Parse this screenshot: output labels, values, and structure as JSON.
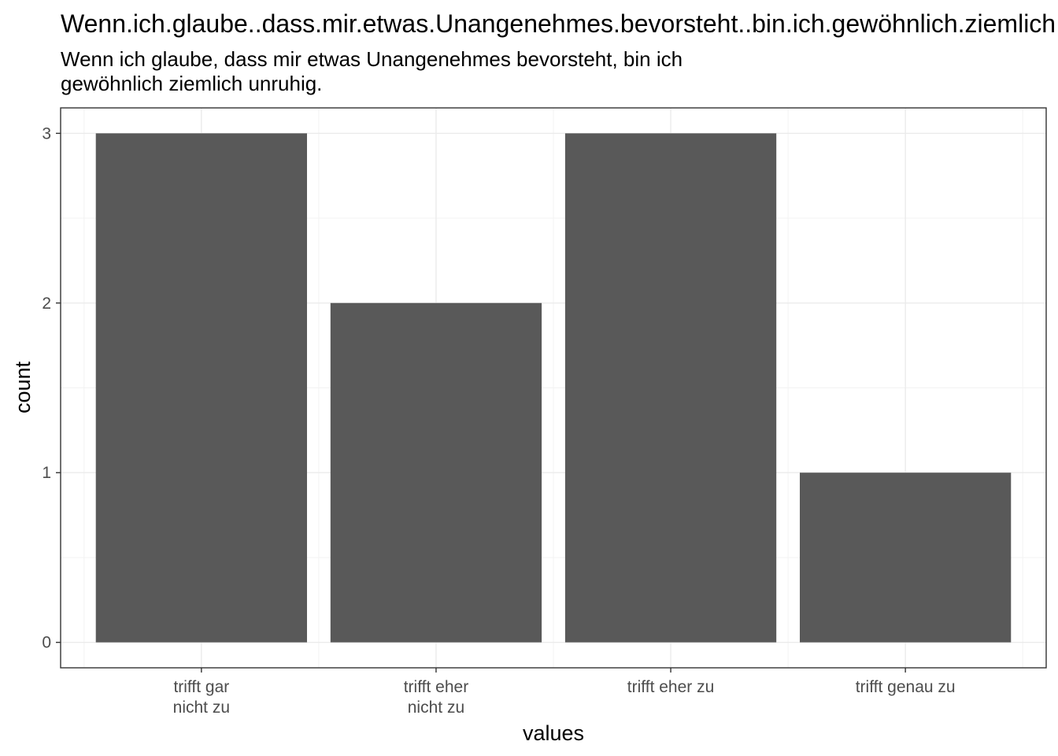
{
  "chart_data": {
    "type": "bar",
    "title": "Wenn.ich.glaube..dass.mir.etwas.Unangenehmes.bevorsteht..bin.ich.gewöhnlich.ziemlich.unruhig.",
    "subtitle_lines": [
      "Wenn ich glaube, dass mir etwas Unangenehmes bevorsteht, bin ich",
      "gewöhnlich ziemlich unruhig."
    ],
    "xlabel": "values",
    "ylabel": "count",
    "categories": [
      {
        "lines": [
          "trifft gar",
          "nicht zu"
        ]
      },
      {
        "lines": [
          "trifft eher",
          "nicht zu"
        ]
      },
      {
        "lines": [
          "trifft eher zu"
        ]
      },
      {
        "lines": [
          "trifft genau zu"
        ]
      }
    ],
    "values": [
      3,
      2,
      3,
      1
    ],
    "yticks": [
      "0",
      "1",
      "2",
      "3"
    ],
    "ylim": [
      -0.15,
      3.15
    ],
    "grid": true,
    "bar_color": "#595959",
    "grid_major_color": "#ebebeb",
    "grid_minor_color": "#f3f3f3",
    "panel_border_color": "#333333"
  }
}
